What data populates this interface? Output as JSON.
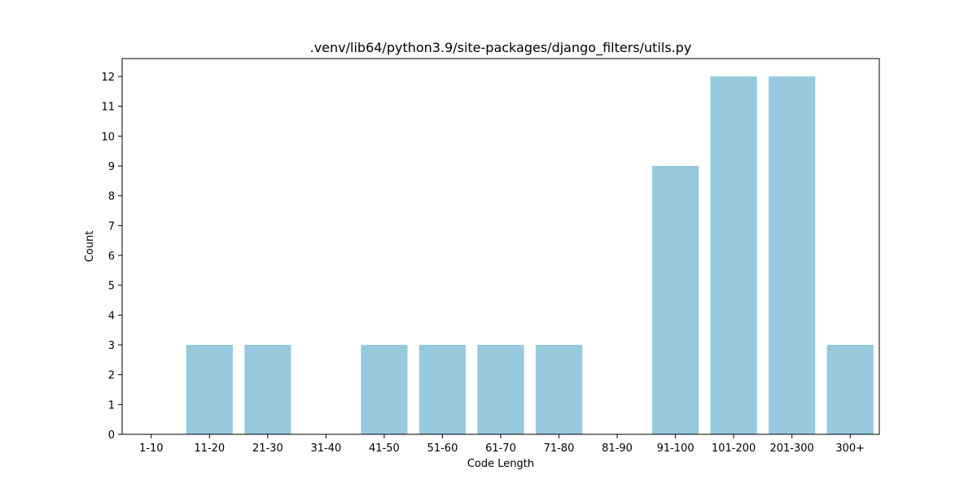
{
  "chart_data": {
    "type": "bar",
    "title": ".venv/lib64/python3.9/site-packages/django_filters/utils.py",
    "xlabel": "Code Length",
    "ylabel": "Count",
    "categories": [
      "1-10",
      "11-20",
      "21-30",
      "31-40",
      "41-50",
      "51-60",
      "61-70",
      "71-80",
      "81-90",
      "91-100",
      "101-200",
      "201-300",
      "300+"
    ],
    "values": [
      0,
      3,
      3,
      0,
      3,
      3,
      3,
      3,
      0,
      9,
      12,
      12,
      3
    ],
    "ylim": [
      0,
      12.6
    ],
    "yticks": [
      0,
      1,
      2,
      3,
      4,
      5,
      6,
      7,
      8,
      9,
      10,
      11,
      12
    ],
    "bar_color": "#96c9de",
    "grid": false,
    "legend": "none"
  }
}
